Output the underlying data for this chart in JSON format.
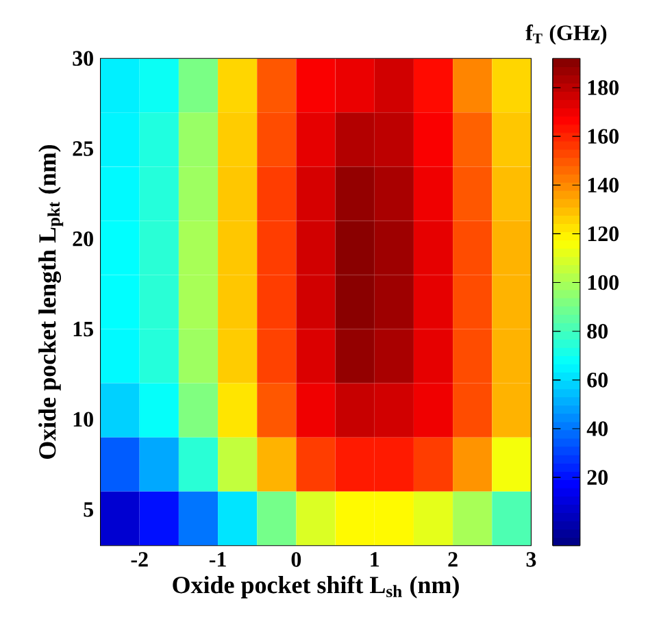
{
  "chart_data": {
    "type": "heatmap",
    "xlabel": "Oxide pocket shift L$_{sh}$ (nm)",
    "ylabel": "Oxide pocket length L$_{pkt}$ (nm)",
    "clabel": "f$_{T}$ (GHz)",
    "x": [
      -2.25,
      -1.75,
      -1.25,
      -0.75,
      -0.25,
      0.25,
      0.75,
      1.25,
      1.75,
      2.25,
      2.75
    ],
    "y": [
      28.5,
      25.5,
      22.5,
      19.5,
      16.5,
      13.5,
      10.5,
      7.5,
      4.5
    ],
    "cells": [
      [
        64,
        69,
        91,
        125,
        150,
        168,
        171,
        176,
        165,
        141,
        125
      ],
      [
        65,
        73,
        97,
        127,
        152,
        172,
        182,
        180,
        168,
        148,
        128
      ],
      [
        66,
        74,
        98,
        128,
        155,
        175,
        188,
        184,
        170,
        150,
        130
      ],
      [
        67,
        75,
        100,
        128,
        155,
        176,
        190,
        186,
        172,
        152,
        132
      ],
      [
        67,
        75,
        100,
        128,
        155,
        176,
        190,
        186,
        172,
        152,
        132
      ],
      [
        66,
        74,
        98,
        127,
        154,
        174,
        188,
        184,
        172,
        152,
        132
      ],
      [
        58,
        68,
        92,
        122,
        150,
        170,
        178,
        176,
        170,
        152,
        132
      ],
      [
        35,
        50,
        75,
        105,
        132,
        155,
        162,
        162,
        155,
        138,
        115
      ],
      [
        8,
        20,
        40,
        62,
        90,
        110,
        118,
        118,
        112,
        100,
        82
      ]
    ],
    "xlim": [
      -2.5,
      3
    ],
    "ylim": [
      3,
      30
    ],
    "xticks": [
      -2,
      -1,
      0,
      1,
      2,
      3
    ],
    "yticks": [
      5,
      10,
      15,
      20,
      25,
      30
    ],
    "clim": [
      -8,
      192
    ],
    "cticks": [
      20,
      40,
      60,
      80,
      100,
      120,
      140,
      160,
      180
    ]
  }
}
